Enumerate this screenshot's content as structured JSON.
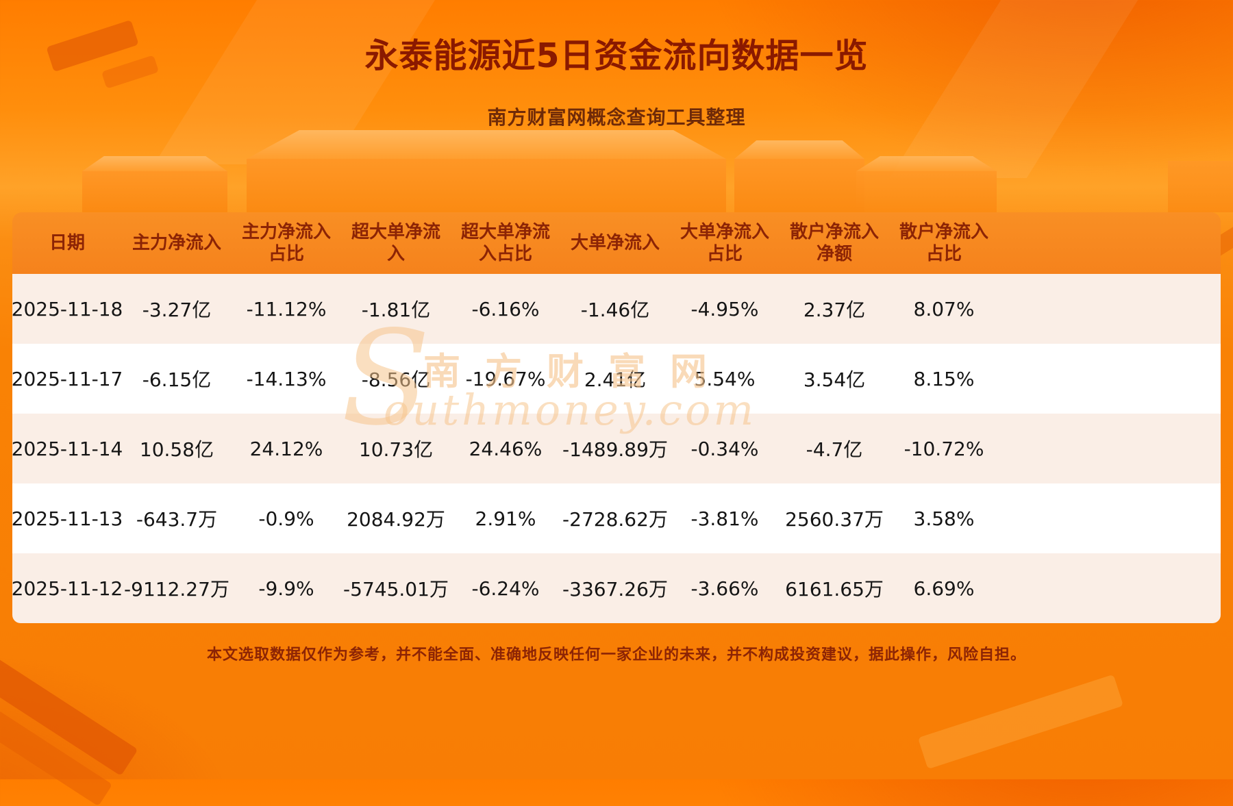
{
  "header": {
    "title": "永泰能源近5日资金流向数据一览",
    "subtitle": "南方财富网概念查询工具整理"
  },
  "watermark": {
    "big_s": "S",
    "cn": "南方财富网",
    "en": "outhmoney.com"
  },
  "footer": {
    "disclaimer": "本文选取数据仅作为参考，并不能全面、准确地反映任何一家企业的未来，并不构成投资建议，据此操作，风险自担。"
  },
  "colors": {
    "bg_orange": "#f98205",
    "header_bg": "#f5821c",
    "header_text": "#8c2405",
    "row_alt": "#faeee6",
    "row_white": "#ffffff",
    "cell_text": "#151515",
    "title_color": "#8a1900",
    "subtitle_color": "#6f2a08",
    "disclaimer_color": "#8c2405"
  },
  "chart_data": {
    "type": "table",
    "title": "永泰能源近5日资金流向数据一览",
    "columns": [
      "日期",
      "主力净流入",
      "主力净流入占比",
      "超大单净流入",
      "超大单净流入占比",
      "大单净流入",
      "大单净流入占比",
      "散户净流入净额",
      "散户净流入占比"
    ],
    "rows": [
      [
        "2025-11-18",
        "-3.27亿",
        "-11.12%",
        "-1.81亿",
        "-6.16%",
        "-1.46亿",
        "-4.95%",
        "2.37亿",
        "8.07%"
      ],
      [
        "2025-11-17",
        "-6.15亿",
        "-14.13%",
        "-8.56亿",
        "-19.67%",
        "2.41亿",
        "5.54%",
        "3.54亿",
        "8.15%"
      ],
      [
        "2025-11-14",
        "10.58亿",
        "24.12%",
        "10.73亿",
        "24.46%",
        "-1489.89万",
        "-0.34%",
        "-4.7亿",
        "-10.72%"
      ],
      [
        "2025-11-13",
        "-643.7万",
        "-0.9%",
        "2084.92万",
        "2.91%",
        "-2728.62万",
        "-3.81%",
        "2560.37万",
        "3.58%"
      ],
      [
        "2025-11-12",
        "-9112.27万",
        "-9.9%",
        "-5745.01万",
        "-6.24%",
        "-3367.26万",
        "-3.66%",
        "6161.65万",
        "6.69%"
      ]
    ]
  }
}
